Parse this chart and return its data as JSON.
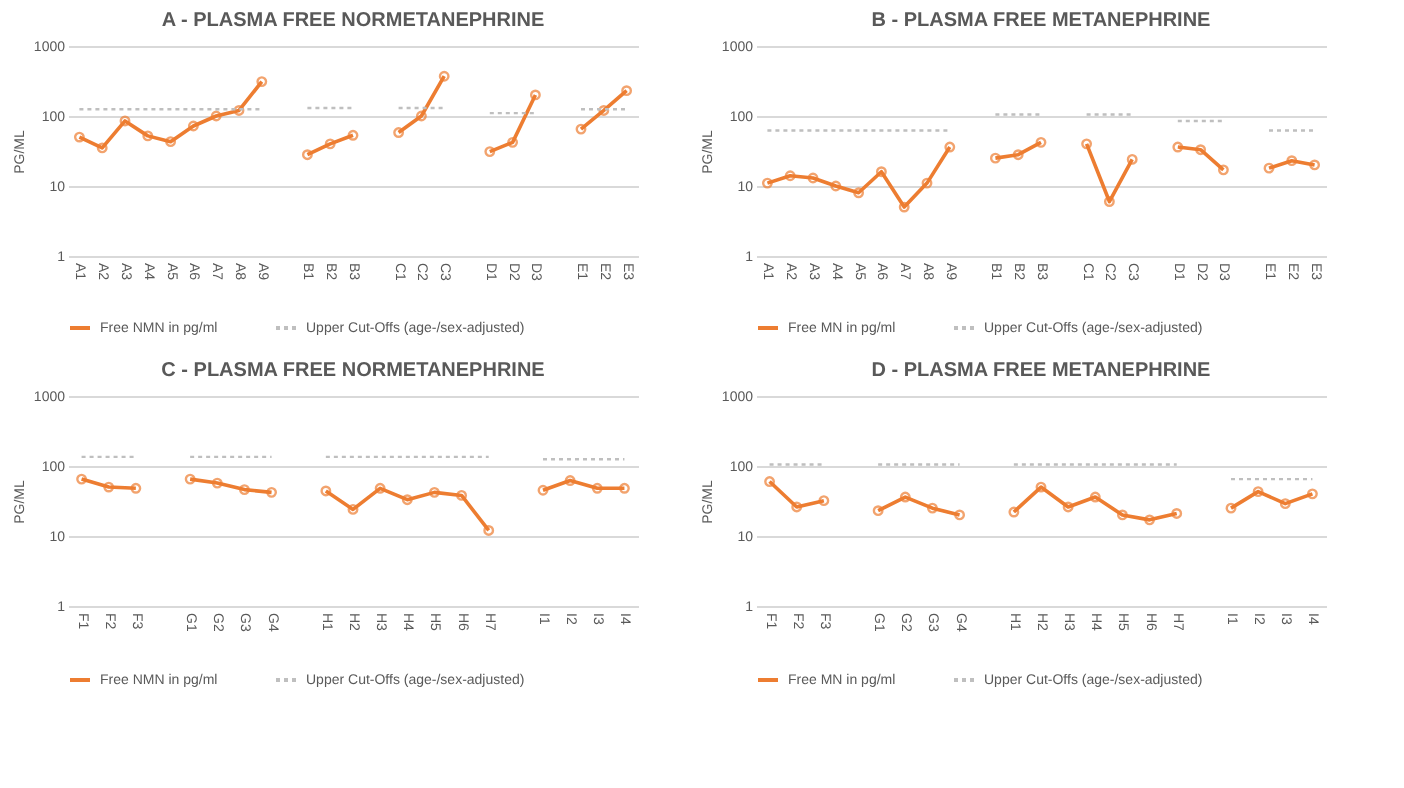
{
  "chart_data": [
    {
      "type": "line",
      "title": "A - PLASMA FREE NORMETANEPHRINE",
      "ylabel": "PG/ML",
      "categories": [
        "A1",
        "A2",
        "A3",
        "A4",
        "A5",
        "A6",
        "A7",
        "A8",
        "A9",
        null,
        "B1",
        "B2",
        "B3",
        null,
        "C1",
        "C2",
        "C3",
        null,
        "D1",
        "D2",
        "D3",
        null,
        "E1",
        "E2",
        "E3"
      ],
      "log": "y",
      "ylim": [
        1,
        1000
      ],
      "yticks": [
        1,
        10,
        100,
        1000
      ],
      "grid": "y",
      "legend": "bottom",
      "series": [
        {
          "name": "Free NMN in pg/ml",
          "color": "#ed7d31",
          "marker": "circle",
          "line_style": "solid",
          "values": [
            50,
            35,
            85,
            52,
            43,
            72,
            100,
            120,
            310,
            null,
            28,
            40,
            53,
            null,
            58,
            100,
            370,
            null,
            31,
            42,
            200,
            null,
            65,
            120,
            230
          ]
        },
        {
          "name": "Upper Cut-Offs (age-/sex-adjusted)",
          "color": "#bfbfbf",
          "marker": "none",
          "line_style": "dotted",
          "values": [
            125,
            125,
            125,
            125,
            125,
            125,
            125,
            125,
            125,
            null,
            130,
            130,
            130,
            null,
            130,
            130,
            130,
            null,
            110,
            110,
            110,
            null,
            125,
            125,
            125
          ]
        }
      ]
    },
    {
      "type": "line",
      "title": "B - PLASMA FREE METANEPHRINE",
      "ylabel": "PG/ML",
      "categories": [
        "A1",
        "A2",
        "A3",
        "A4",
        "A5",
        "A6",
        "A7",
        "A8",
        "A9",
        null,
        "B1",
        "B2",
        "B3",
        null,
        "C1",
        "C2",
        "C3",
        null,
        "D1",
        "D2",
        "D3",
        null,
        "E1",
        "E2",
        "E3"
      ],
      "log": "y",
      "ylim": [
        1,
        1000
      ],
      "yticks": [
        1,
        10,
        100,
        1000
      ],
      "grid": "y",
      "legend": "bottom",
      "series": [
        {
          "name": "Free MN in pg/ml",
          "color": "#ed7d31",
          "marker": "circle",
          "line_style": "solid",
          "values": [
            11,
            14,
            13,
            10,
            8,
            16,
            5,
            11,
            36,
            null,
            25,
            28,
            42,
            null,
            40,
            6,
            24,
            null,
            36,
            33,
            17,
            null,
            18,
            23,
            20
          ]
        },
        {
          "name": "Upper Cut-Offs (age-/sex-adjusted)",
          "color": "#bfbfbf",
          "marker": "none",
          "line_style": "dotted",
          "values": [
            62,
            62,
            62,
            62,
            62,
            62,
            62,
            62,
            62,
            null,
            105,
            105,
            105,
            null,
            105,
            105,
            105,
            null,
            85,
            85,
            85,
            null,
            62,
            62,
            62
          ]
        }
      ]
    },
    {
      "type": "line",
      "title": "C - PLASMA FREE NORMETANEPHRINE",
      "ylabel": "PG/ML",
      "categories": [
        "F1",
        "F2",
        "F3",
        null,
        "G1",
        "G2",
        "G3",
        "G4",
        null,
        "H1",
        "H2",
        "H3",
        "H4",
        "H5",
        "H6",
        "H7",
        null,
        "I1",
        "I2",
        "I3",
        "I4"
      ],
      "log": "y",
      "ylim": [
        1,
        1000
      ],
      "yticks": [
        1,
        10,
        100,
        1000
      ],
      "grid": "y",
      "legend": "bottom",
      "series": [
        {
          "name": "Free NMN in pg/ml",
          "color": "#ed7d31",
          "marker": "circle",
          "line_style": "solid",
          "values": [
            65,
            50,
            48,
            null,
            65,
            57,
            46,
            42,
            null,
            44,
            24,
            48,
            33,
            42,
            38,
            12,
            null,
            45,
            62,
            48,
            48
          ]
        },
        {
          "name": "Upper Cut-Offs (age-/sex-adjusted)",
          "color": "#bfbfbf",
          "marker": "none",
          "line_style": "dotted",
          "values": [
            135,
            135,
            135,
            null,
            135,
            135,
            135,
            135,
            null,
            135,
            135,
            135,
            135,
            135,
            135,
            135,
            null,
            125,
            125,
            125,
            125
          ]
        }
      ]
    },
    {
      "type": "line",
      "title": "D - PLASMA FREE METANEPHRINE",
      "ylabel": "PG/ML",
      "categories": [
        "F1",
        "F2",
        "F3",
        null,
        "G1",
        "G2",
        "G3",
        "G4",
        null,
        "H1",
        "H2",
        "H3",
        "H4",
        "H5",
        "H6",
        "H7",
        null,
        "I1",
        "I2",
        "I3",
        "I4"
      ],
      "log": "y",
      "ylim": [
        1,
        1000
      ],
      "yticks": [
        1,
        10,
        100,
        1000
      ],
      "grid": "y",
      "legend": "bottom",
      "series": [
        {
          "name": "Free MN in pg/ml",
          "color": "#ed7d31",
          "marker": "circle",
          "line_style": "solid",
          "values": [
            60,
            26,
            32,
            null,
            23,
            36,
            25,
            20,
            null,
            22,
            50,
            26,
            36,
            20,
            17,
            21,
            null,
            25,
            43,
            29,
            40
          ]
        },
        {
          "name": "Upper Cut-Offs (age-/sex-adjusted)",
          "color": "#bfbfbf",
          "marker": "none",
          "line_style": "dotted",
          "values": [
            105,
            105,
            105,
            null,
            105,
            105,
            105,
            105,
            null,
            105,
            105,
            105,
            105,
            105,
            105,
            105,
            null,
            65,
            65,
            65,
            65
          ]
        }
      ]
    }
  ]
}
